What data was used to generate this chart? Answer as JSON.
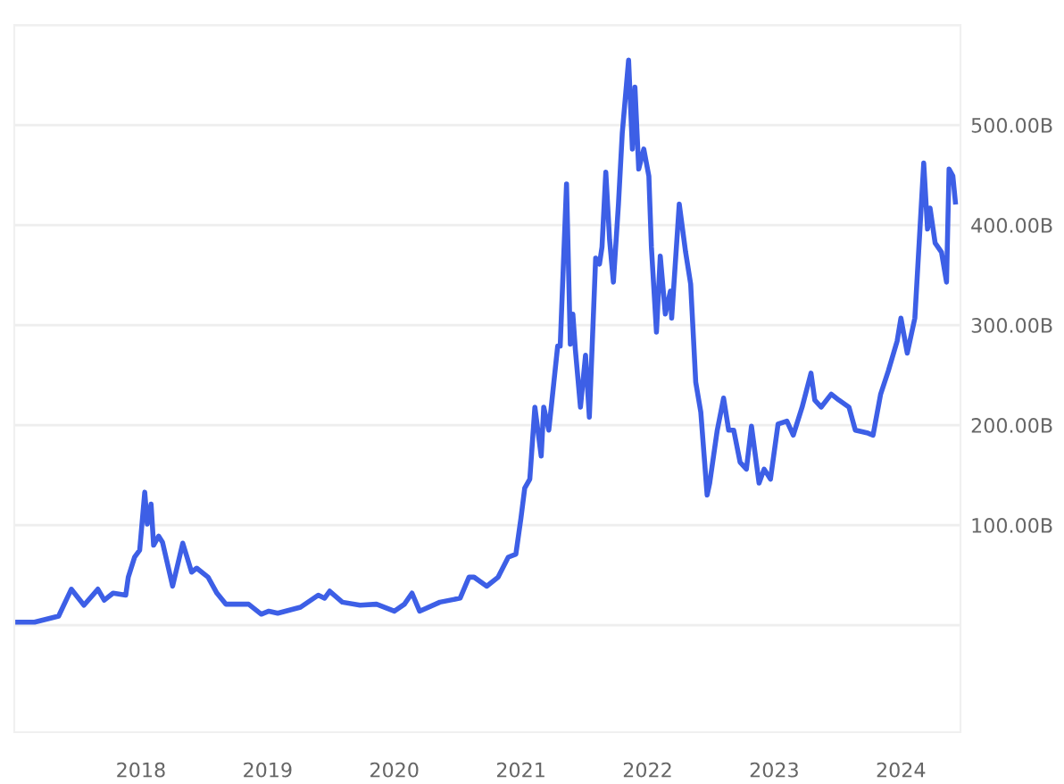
{
  "chart_data": {
    "type": "line",
    "x": [
      2017.0,
      2017.16,
      2017.35,
      2017.45,
      2017.55,
      2017.66,
      2017.71,
      2017.78,
      2017.88,
      2017.9,
      2017.95,
      2017.99,
      2018.03,
      2018.05,
      2018.08,
      2018.1,
      2018.14,
      2018.17,
      2018.25,
      2018.33,
      2018.4,
      2018.44,
      2018.53,
      2018.6,
      2018.67,
      2018.85,
      2018.95,
      2019.01,
      2019.08,
      2019.26,
      2019.4,
      2019.45,
      2019.49,
      2019.59,
      2019.73,
      2019.86,
      2020.0,
      2020.08,
      2020.14,
      2020.2,
      2020.36,
      2020.52,
      2020.59,
      2020.63,
      2020.73,
      2020.82,
      2020.9,
      2020.96,
      2021.0,
      2021.03,
      2021.07,
      2021.11,
      2021.16,
      2021.18,
      2021.22,
      2021.26,
      2021.29,
      2021.31,
      2021.36,
      2021.39,
      2021.41,
      2021.43,
      2021.47,
      2021.51,
      2021.54,
      2021.59,
      2021.62,
      2021.64,
      2021.67,
      2021.7,
      2021.73,
      2021.77,
      2021.8,
      2021.85,
      2021.88,
      2021.9,
      2021.93,
      2021.97,
      2022.01,
      2022.03,
      2022.07,
      2022.1,
      2022.14,
      2022.18,
      2022.19,
      2022.25,
      2022.3,
      2022.34,
      2022.38,
      2022.42,
      2022.47,
      2022.49,
      2022.55,
      2022.6,
      2022.64,
      2022.68,
      2022.73,
      2022.78,
      2022.82,
      2022.88,
      2022.92,
      2022.97,
      2023.03,
      2023.1,
      2023.15,
      2023.22,
      2023.29,
      2023.32,
      2023.37,
      2023.45,
      2023.51,
      2023.59,
      2023.64,
      2023.74,
      2023.78,
      2023.84,
      2023.9,
      2023.97,
      2024.0,
      2024.05,
      2024.11,
      2024.18,
      2024.21,
      2024.23,
      2024.27,
      2024.32,
      2024.36,
      2024.38,
      2024.41,
      2024.43
    ],
    "series": [
      {
        "color": "#3d5fe6",
        "values": [
          3,
          3,
          9,
          36,
          20,
          36,
          25,
          32,
          30,
          48,
          68,
          75,
          133,
          101,
          121,
          80,
          89,
          83,
          39,
          82,
          53,
          57,
          48,
          32,
          21,
          21,
          11,
          14,
          12,
          18,
          30,
          27,
          34,
          23,
          20,
          21,
          14,
          21,
          32,
          14,
          23,
          27,
          48,
          48,
          39,
          48,
          68,
          71,
          107,
          137,
          146,
          218,
          169,
          218,
          195,
          243,
          279,
          279,
          441,
          281,
          311,
          275,
          218,
          270,
          208,
          367,
          361,
          378,
          453,
          385,
          343,
          421,
          492,
          565,
          476,
          538,
          456,
          476,
          449,
          378,
          293,
          369,
          311,
          334,
          307,
          421,
          373,
          341,
          243,
          213,
          130,
          142,
          195,
          227,
          195,
          195,
          163,
          156,
          199,
          142,
          156,
          146,
          201,
          204,
          190,
          218,
          252,
          225,
          218,
          231,
          225,
          218,
          195,
          192,
          190,
          231,
          254,
          284,
          307,
          272,
          307,
          462,
          396,
          417,
          382,
          373,
          343,
          456,
          449,
          423
        ]
      }
    ],
    "xlim": [
      2017.0,
      2024.47
    ],
    "xticks": [
      2018,
      2019,
      2020,
      2021,
      2022,
      2023,
      2024
    ],
    "ylim": [
      -107,
      600
    ],
    "yticks": [
      {
        "value": 0,
        "label": null
      },
      {
        "value": 100,
        "label": "100.00B"
      },
      {
        "value": 200,
        "label": "200.00B"
      },
      {
        "value": 300,
        "label": "300.00B"
      },
      {
        "value": 400,
        "label": "400.00B"
      },
      {
        "value": 500,
        "label": "500.00B"
      },
      {
        "value": 600,
        "label": null
      }
    ],
    "grid": "y",
    "legend": false,
    "marker": "none",
    "line_style": "solid"
  }
}
